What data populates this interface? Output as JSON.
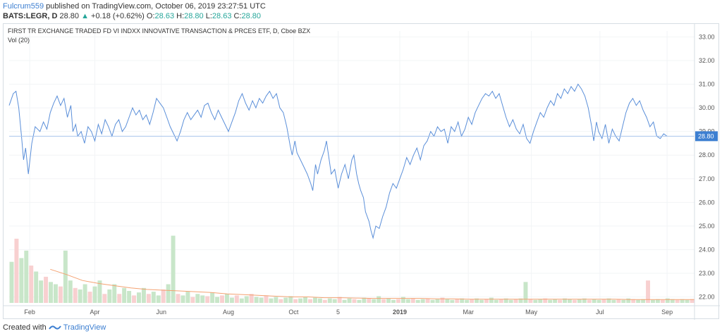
{
  "header": {
    "author": "Fulcrum559",
    "published_text": "published on TradingView.com, October 06, 2019 23:27:51 UTC",
    "symbol": "BATS:LEGR, D",
    "last": "28.80",
    "change": "+0.18 (+0.62%)",
    "o_label": "O:",
    "o_value": "28.63",
    "h_label": "H:",
    "h_value": "28.80",
    "l_label": "L:",
    "l_value": "28.63",
    "c_label": "C:",
    "c_value": "28.80"
  },
  "footer": {
    "created_with": "Created with",
    "brand": "TradingView",
    "logo_icon": "tradingview-logo-icon"
  },
  "colors": {
    "price_line": "#5b8fd9",
    "volume_ma": "#f4a272",
    "volume_up": "#c8e6c9",
    "volume_down": "#f8d0d0",
    "price_tag_bg": "#3d7fd1",
    "grid": "#f0f3f5"
  },
  "chart_data": {
    "type": "line",
    "title": "FIRST TR EXCHANGE TRADED FD VI INDXX INNOVATIVE TRANSACTION & PRCES ETF, D, Cboe BZX",
    "volume_label": "Vol (20)",
    "y_ticks": [
      "33.00",
      "32.00",
      "31.00",
      "30.00",
      "29.00",
      "28.00",
      "27.00",
      "26.00",
      "25.00",
      "24.00",
      "23.00",
      "22.00"
    ],
    "ylim": [
      21.75,
      33.25
    ],
    "x_ticks": [
      {
        "label": "Feb",
        "t": 0.03
      },
      {
        "label": "Apr",
        "t": 0.125
      },
      {
        "label": "Jun",
        "t": 0.222
      },
      {
        "label": "Aug",
        "t": 0.32
      },
      {
        "label": "Oct",
        "t": 0.415
      },
      {
        "label": "5",
        "t": 0.48
      },
      {
        "label": "2019",
        "t": 0.57,
        "bold": true
      },
      {
        "label": "Mar",
        "t": 0.67
      },
      {
        "label": "May",
        "t": 0.762
      },
      {
        "label": "Jul",
        "t": 0.862
      },
      {
        "label": "Sep",
        "t": 0.96
      }
    ],
    "current_price": 28.8,
    "current_price_label": "28.80",
    "price_series": {
      "name": "LEGR",
      "points": [
        [
          0,
          30.1
        ],
        [
          0.006,
          30.6
        ],
        [
          0.01,
          30.7
        ],
        [
          0.014,
          30.0
        ],
        [
          0.018,
          28.8
        ],
        [
          0.021,
          27.8
        ],
        [
          0.024,
          28.3
        ],
        [
          0.028,
          27.2
        ],
        [
          0.033,
          28.5
        ],
        [
          0.038,
          29.2
        ],
        [
          0.045,
          29.0
        ],
        [
          0.05,
          29.4
        ],
        [
          0.055,
          29.1
        ],
        [
          0.06,
          29.8
        ],
        [
          0.065,
          30.2
        ],
        [
          0.07,
          30.5
        ],
        [
          0.075,
          30.1
        ],
        [
          0.08,
          30.4
        ],
        [
          0.085,
          29.6
        ],
        [
          0.09,
          30.1
        ],
        [
          0.093,
          29.0
        ],
        [
          0.097,
          29.3
        ],
        [
          0.1,
          28.8
        ],
        [
          0.105,
          29.0
        ],
        [
          0.11,
          28.5
        ],
        [
          0.115,
          29.2
        ],
        [
          0.12,
          29.0
        ],
        [
          0.125,
          28.6
        ],
        [
          0.13,
          29.3
        ],
        [
          0.135,
          28.9
        ],
        [
          0.14,
          29.5
        ],
        [
          0.145,
          29.2
        ],
        [
          0.15,
          28.8
        ],
        [
          0.155,
          29.3
        ],
        [
          0.16,
          29.5
        ],
        [
          0.165,
          29.0
        ],
        [
          0.17,
          29.2
        ],
        [
          0.175,
          29.6
        ],
        [
          0.18,
          30.0
        ],
        [
          0.185,
          29.7
        ],
        [
          0.19,
          29.9
        ],
        [
          0.195,
          29.5
        ],
        [
          0.2,
          29.7
        ],
        [
          0.205,
          29.3
        ],
        [
          0.21,
          29.8
        ],
        [
          0.215,
          30.4
        ],
        [
          0.22,
          30.2
        ],
        [
          0.225,
          30.0
        ],
        [
          0.23,
          29.6
        ],
        [
          0.235,
          29.2
        ],
        [
          0.24,
          28.9
        ],
        [
          0.245,
          28.6
        ],
        [
          0.25,
          29.0
        ],
        [
          0.255,
          29.5
        ],
        [
          0.26,
          29.8
        ],
        [
          0.265,
          29.5
        ],
        [
          0.27,
          29.7
        ],
        [
          0.275,
          29.9
        ],
        [
          0.28,
          29.6
        ],
        [
          0.285,
          30.1
        ],
        [
          0.29,
          30.2
        ],
        [
          0.295,
          29.8
        ],
        [
          0.3,
          29.5
        ],
        [
          0.305,
          29.9
        ],
        [
          0.31,
          29.6
        ],
        [
          0.315,
          29.3
        ],
        [
          0.32,
          29.0
        ],
        [
          0.325,
          29.4
        ],
        [
          0.33,
          29.8
        ],
        [
          0.335,
          30.3
        ],
        [
          0.34,
          30.6
        ],
        [
          0.345,
          30.2
        ],
        [
          0.35,
          29.9
        ],
        [
          0.355,
          30.3
        ],
        [
          0.36,
          30.0
        ],
        [
          0.365,
          30.4
        ],
        [
          0.37,
          30.2
        ],
        [
          0.375,
          30.5
        ],
        [
          0.38,
          30.7
        ],
        [
          0.385,
          30.4
        ],
        [
          0.39,
          30.6
        ],
        [
          0.395,
          30.0
        ],
        [
          0.4,
          29.8
        ],
        [
          0.405,
          29.2
        ],
        [
          0.41,
          28.4
        ],
        [
          0.413,
          28.0
        ],
        [
          0.417,
          28.6
        ],
        [
          0.42,
          28.1
        ],
        [
          0.425,
          27.8
        ],
        [
          0.43,
          27.5
        ],
        [
          0.435,
          27.2
        ],
        [
          0.44,
          26.8
        ],
        [
          0.443,
          26.5
        ],
        [
          0.447,
          27.6
        ],
        [
          0.45,
          27.2
        ],
        [
          0.455,
          27.8
        ],
        [
          0.46,
          28.2
        ],
        [
          0.463,
          28.6
        ],
        [
          0.467,
          27.8
        ],
        [
          0.47,
          27.2
        ],
        [
          0.475,
          27.4
        ],
        [
          0.48,
          26.6
        ],
        [
          0.485,
          27.2
        ],
        [
          0.49,
          27.6
        ],
        [
          0.495,
          27.0
        ],
        [
          0.5,
          27.8
        ],
        [
          0.503,
          28.0
        ],
        [
          0.507,
          27.2
        ],
        [
          0.51,
          26.8
        ],
        [
          0.513,
          26.5
        ],
        [
          0.517,
          26.2
        ],
        [
          0.52,
          25.6
        ],
        [
          0.525,
          25.2
        ],
        [
          0.528,
          24.8
        ],
        [
          0.531,
          24.5
        ],
        [
          0.535,
          25.0
        ],
        [
          0.54,
          24.9
        ],
        [
          0.545,
          25.4
        ],
        [
          0.55,
          25.8
        ],
        [
          0.555,
          26.4
        ],
        [
          0.56,
          26.8
        ],
        [
          0.565,
          26.6
        ],
        [
          0.57,
          27.0
        ],
        [
          0.575,
          27.4
        ],
        [
          0.58,
          27.9
        ],
        [
          0.585,
          27.6
        ],
        [
          0.59,
          28.0
        ],
        [
          0.595,
          28.3
        ],
        [
          0.6,
          27.8
        ],
        [
          0.605,
          28.4
        ],
        [
          0.61,
          28.6
        ],
        [
          0.615,
          29.0
        ],
        [
          0.62,
          28.8
        ],
        [
          0.625,
          29.2
        ],
        [
          0.63,
          29.0
        ],
        [
          0.635,
          29.1
        ],
        [
          0.64,
          28.5
        ],
        [
          0.645,
          29.2
        ],
        [
          0.65,
          29.0
        ],
        [
          0.655,
          29.4
        ],
        [
          0.66,
          28.8
        ],
        [
          0.665,
          29.1
        ],
        [
          0.67,
          29.6
        ],
        [
          0.675,
          29.3
        ],
        [
          0.68,
          29.8
        ],
        [
          0.685,
          30.1
        ],
        [
          0.69,
          30.4
        ],
        [
          0.695,
          30.6
        ],
        [
          0.7,
          30.5
        ],
        [
          0.705,
          30.7
        ],
        [
          0.71,
          30.4
        ],
        [
          0.715,
          30.6
        ],
        [
          0.72,
          30.1
        ],
        [
          0.725,
          29.6
        ],
        [
          0.73,
          29.2
        ],
        [
          0.735,
          29.5
        ],
        [
          0.74,
          29.1
        ],
        [
          0.745,
          28.9
        ],
        [
          0.75,
          29.3
        ],
        [
          0.755,
          28.7
        ],
        [
          0.76,
          28.5
        ],
        [
          0.765,
          29.0
        ],
        [
          0.77,
          29.4
        ],
        [
          0.775,
          29.8
        ],
        [
          0.78,
          29.6
        ],
        [
          0.785,
          30.0
        ],
        [
          0.79,
          30.3
        ],
        [
          0.795,
          30.1
        ],
        [
          0.8,
          30.6
        ],
        [
          0.805,
          30.4
        ],
        [
          0.81,
          30.8
        ],
        [
          0.815,
          30.6
        ],
        [
          0.82,
          30.9
        ],
        [
          0.825,
          30.7
        ],
        [
          0.83,
          31.0
        ],
        [
          0.835,
          30.8
        ],
        [
          0.84,
          30.5
        ],
        [
          0.845,
          30.0
        ],
        [
          0.85,
          29.2
        ],
        [
          0.853,
          28.6
        ],
        [
          0.857,
          29.4
        ],
        [
          0.86,
          29.0
        ],
        [
          0.865,
          28.7
        ],
        [
          0.87,
          29.3
        ],
        [
          0.875,
          28.5
        ],
        [
          0.88,
          29.1
        ],
        [
          0.885,
          28.8
        ],
        [
          0.89,
          28.6
        ],
        [
          0.895,
          29.2
        ],
        [
          0.9,
          29.8
        ],
        [
          0.905,
          30.2
        ],
        [
          0.91,
          30.4
        ],
        [
          0.915,
          30.1
        ],
        [
          0.92,
          30.3
        ],
        [
          0.925,
          29.9
        ],
        [
          0.93,
          29.6
        ],
        [
          0.935,
          29.2
        ],
        [
          0.94,
          29.4
        ],
        [
          0.945,
          28.8
        ],
        [
          0.95,
          28.7
        ],
        [
          0.955,
          28.9
        ],
        [
          0.96,
          28.8
        ]
      ]
    },
    "volume_series": {
      "ylim": [
        0,
        1
      ],
      "bars": [
        0.55,
        0.86,
        0.6,
        0.7,
        0.5,
        0.42,
        0.3,
        0.35,
        0.28,
        0.25,
        0.22,
        0.7,
        0.3,
        0.2,
        0.18,
        0.25,
        0.15,
        0.22,
        0.3,
        0.12,
        0.18,
        0.25,
        0.12,
        0.2,
        0.16,
        0.1,
        0.14,
        0.2,
        0.12,
        0.15,
        0.1,
        0.18,
        0.25,
        0.9,
        0.12,
        0.1,
        0.15,
        0.08,
        0.12,
        0.1,
        0.09,
        0.14,
        0.08,
        0.1,
        0.12,
        0.07,
        0.1,
        0.06,
        0.09,
        0.12,
        0.08,
        0.07,
        0.1,
        0.06,
        0.08,
        0.05,
        0.07,
        0.09,
        0.05,
        0.06,
        0.08,
        0.05,
        0.07,
        0.06,
        0.04,
        0.06,
        0.05,
        0.08,
        0.04,
        0.06,
        0.05,
        0.04,
        0.07,
        0.06,
        0.05,
        0.09,
        0.05,
        0.06,
        0.04,
        0.05,
        0.08,
        0.05,
        0.06,
        0.04,
        0.05,
        0.06,
        0.04,
        0.05,
        0.07,
        0.05,
        0.04,
        0.05,
        0.06,
        0.04,
        0.05,
        0.06,
        0.04,
        0.05,
        0.07,
        0.04,
        0.05,
        0.06,
        0.04,
        0.05,
        0.06,
        0.28,
        0.05,
        0.04,
        0.05,
        0.06,
        0.04,
        0.05,
        0.04,
        0.06,
        0.05,
        0.04,
        0.05,
        0.06,
        0.04,
        0.05,
        0.04,
        0.05,
        0.06,
        0.04,
        0.05,
        0.04,
        0.06,
        0.05,
        0.04,
        0.05,
        0.3,
        0.04,
        0.05,
        0.04,
        0.06,
        0.05,
        0.04,
        0.05,
        0.04,
        0.05
      ],
      "ma": [
        0.45,
        0.38,
        0.3,
        0.26,
        0.23,
        0.2,
        0.18,
        0.17,
        0.16,
        0.15,
        0.14,
        0.12,
        0.11,
        0.1,
        0.09,
        0.08,
        0.08,
        0.07,
        0.07,
        0.065,
        0.06,
        0.06,
        0.06,
        0.06,
        0.055,
        0.055,
        0.05,
        0.05,
        0.05,
        0.05,
        0.05,
        0.05,
        0.05,
        0.05,
        0.05,
        0.05,
        0.045,
        0.045,
        0.045,
        0.045,
        0.045
      ]
    }
  }
}
